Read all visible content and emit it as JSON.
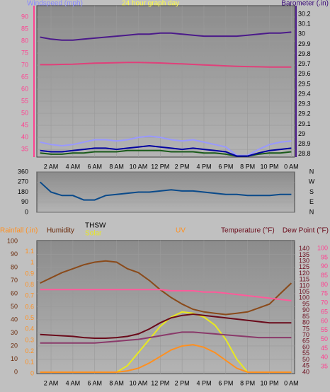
{
  "chart_data": [
    {
      "type": "line",
      "title": "24 hour graph day",
      "y_label": "Windspeed (mph)",
      "y2_label": "Barometer (.in)",
      "xlim": [
        0.7,
        24.3
      ],
      "x": [
        1,
        2,
        3,
        4,
        5,
        6,
        7,
        8,
        9,
        10,
        11,
        12,
        13,
        14,
        15,
        16,
        17,
        18,
        19,
        20,
        21,
        22,
        23,
        24
      ],
      "xticks": [
        {
          "value": 2,
          "label": "2 AM"
        },
        {
          "value": 4,
          "label": "4 AM"
        },
        {
          "value": 6,
          "label": "6 AM"
        },
        {
          "value": 8,
          "label": "8 AM"
        },
        {
          "value": 10,
          "label": "10 AM"
        },
        {
          "value": 12,
          "label": "12 PM"
        },
        {
          "value": 14,
          "label": "2 PM"
        },
        {
          "value": 16,
          "label": "4 PM"
        },
        {
          "value": 18,
          "label": "6 PM"
        },
        {
          "value": 20,
          "label": "8 PM"
        },
        {
          "value": 22,
          "label": "10 PM"
        },
        {
          "value": 24,
          "label": "0 AM"
        }
      ],
      "ylim": [
        31.8,
        94.7
      ],
      "yticks": [
        35,
        40,
        45,
        50,
        55,
        60,
        65,
        70,
        75,
        80,
        85,
        90
      ],
      "y2lim": [
        28.77,
        30.285
      ],
      "y2ticks": [
        28.8,
        28.9,
        29,
        29.1,
        29.2,
        29.3,
        29.4,
        29.5,
        29.6,
        29.7,
        29.8,
        29.9,
        30,
        30.1,
        30.2
      ],
      "grid": true,
      "series": [
        {
          "color": "#9999ff",
          "axis": "y",
          "values": [
            38,
            37,
            36.5,
            37,
            38,
            39,
            39,
            38.5,
            39,
            40,
            40.5,
            40,
            39,
            38.5,
            39,
            38,
            37,
            36,
            32.5,
            32.5,
            35,
            37,
            38,
            38.5
          ]
        },
        {
          "color": "#1a5a1a",
          "axis": "y",
          "values": [
            33.5,
            33,
            33,
            33.5,
            33.5,
            34,
            34,
            34,
            34.5,
            34.5,
            34.5,
            34.5,
            34,
            34,
            34,
            33.5,
            33.5,
            33,
            32.2,
            32.2,
            33,
            33.5,
            33.5,
            34
          ]
        },
        {
          "color": "#0000a0",
          "axis": "y",
          "values": [
            34.5,
            34,
            34,
            34.5,
            35,
            35.5,
            35.5,
            35,
            35.5,
            36,
            36.5,
            36,
            35.5,
            35,
            35.5,
            35,
            34.5,
            34,
            32.2,
            32.2,
            33.5,
            34.5,
            35,
            35.5
          ]
        },
        {
          "color": "#e0407a",
          "axis": "y",
          "values": [
            70.2,
            70.2,
            70.3,
            70.4,
            70.6,
            70.8,
            70.9,
            71,
            71.1,
            71.1,
            71,
            70.9,
            70.7,
            70.5,
            70.3,
            70.1,
            69.9,
            69.7,
            69.5,
            69.4,
            69.3,
            69.2,
            69.2,
            69.2
          ]
        },
        {
          "color": "#4b1a8a",
          "axis": "y2",
          "values": [
            29.97,
            29.95,
            29.94,
            29.94,
            29.95,
            29.96,
            29.97,
            29.98,
            29.99,
            30,
            30,
            30.01,
            30.01,
            30,
            29.99,
            29.98,
            29.98,
            29.98,
            29.98,
            29.99,
            30,
            30.01,
            30.01,
            30.02
          ]
        }
      ]
    },
    {
      "type": "line",
      "ylim": [
        0,
        360
      ],
      "yticks": [
        0,
        90,
        180,
        270,
        360
      ],
      "direction_labels": [
        "N",
        "W",
        "S",
        "E",
        "N"
      ],
      "xlim": [
        0.7,
        24.3
      ],
      "x": [
        1,
        2,
        3,
        4,
        5,
        6,
        7,
        8,
        9,
        10,
        11,
        12,
        13,
        14,
        15,
        16,
        17,
        18,
        19,
        20,
        21,
        22,
        23,
        24
      ],
      "grid": true,
      "series": [
        {
          "color": "#0a4a8a",
          "axis": "y",
          "values": [
            270,
            180,
            150,
            150,
            110,
            110,
            150,
            160,
            170,
            180,
            180,
            190,
            200,
            190,
            190,
            180,
            170,
            160,
            160,
            150,
            150,
            150,
            160,
            160
          ]
        }
      ]
    },
    {
      "type": "line",
      "labels": [
        "Rainfall (.in)",
        "Humidity",
        "THSW",
        "Solar",
        "UV",
        "Temperature (°F)",
        "Dew Point (°F)"
      ],
      "xlim": [
        0.7,
        24.3
      ],
      "x": [
        1,
        2,
        3,
        4,
        5,
        6,
        7,
        8,
        9,
        10,
        11,
        12,
        13,
        14,
        15,
        16,
        17,
        18,
        19,
        20,
        21,
        22,
        23,
        24
      ],
      "xticks": [
        {
          "value": 2,
          "label": "2 AM"
        },
        {
          "value": 4,
          "label": "4 AM"
        },
        {
          "value": 6,
          "label": "6 AM"
        },
        {
          "value": 8,
          "label": "8 AM"
        },
        {
          "value": 10,
          "label": "10 AM"
        },
        {
          "value": 12,
          "label": "12 PM"
        },
        {
          "value": 14,
          "label": "2 PM"
        },
        {
          "value": 16,
          "label": "4 PM"
        },
        {
          "value": 18,
          "label": "6 PM"
        },
        {
          "value": 20,
          "label": "8 PM"
        },
        {
          "value": 22,
          "label": "10 PM"
        },
        {
          "value": 24,
          "label": "0 AM"
        }
      ],
      "ylim": [
        -1.1,
        100.5
      ],
      "yticks": [
        0,
        10,
        20,
        30,
        40,
        50,
        60,
        70,
        80,
        90,
        100
      ],
      "rainlim": [
        0,
        1.2
      ],
      "rainticks": [
        0,
        0.1,
        0.2,
        0.3,
        0.4,
        0.5,
        0.6,
        0.7,
        0.8,
        0.9,
        1,
        1.1
      ],
      "y2lim": [
        38.8,
        146.7
      ],
      "y2ticks": [
        40,
        45,
        50,
        55,
        60,
        65,
        70,
        75,
        80,
        85,
        90,
        95,
        100,
        105,
        110,
        115,
        120,
        125,
        130,
        135,
        140
      ],
      "y3lim": [
        31.2,
        104.3
      ],
      "y3ticks": [
        35,
        40,
        45,
        50,
        55,
        60,
        65,
        70,
        75,
        80,
        85,
        90,
        95,
        100
      ],
      "grid": true,
      "series": [
        {
          "color": "#8a4a1a",
          "axis": "y",
          "values": [
            68,
            72,
            76,
            79,
            82,
            84,
            85,
            84,
            79,
            76,
            70,
            63,
            57,
            52,
            48,
            46,
            45,
            44,
            45,
            46,
            49,
            52,
            60,
            68
          ]
        },
        {
          "color": "#e8e820",
          "axis": "y",
          "values": [
            0,
            0,
            0,
            0,
            0,
            0,
            0,
            0,
            5,
            15,
            25,
            35,
            42,
            46,
            45,
            42,
            36,
            25,
            10,
            0,
            0,
            0,
            0,
            0
          ]
        },
        {
          "color": "#ff9020",
          "axis": "y",
          "values": [
            0,
            0,
            0,
            0,
            0,
            0,
            0,
            0,
            1,
            3,
            7,
            12,
            17,
            20,
            21,
            19,
            15,
            9,
            3,
            0,
            0,
            0,
            0,
            0
          ]
        },
        {
          "color": "#ff5a9a",
          "axis": "y2",
          "values": [
            107,
            107,
            107,
            107,
            107,
            107,
            107,
            107,
            107,
            107,
            107,
            107,
            106,
            106,
            106,
            105,
            105,
            104,
            103,
            102,
            101,
            100,
            99,
            98
          ]
        },
        {
          "color": "#6a0a1a",
          "axis": "y2",
          "values": [
            70.5,
            70,
            69.5,
            69,
            68,
            67.5,
            67.5,
            68,
            69,
            71,
            75,
            80,
            84,
            86,
            87,
            86,
            85,
            84,
            83,
            82,
            81,
            80,
            80,
            80
          ]
        },
        {
          "color": "#8a3a6a",
          "axis": "y3",
          "values": [
            48,
            48,
            48,
            48,
            48,
            48,
            48.5,
            49,
            49.5,
            50,
            51,
            52,
            53,
            54,
            54,
            53.5,
            53,
            52.5,
            52,
            51.5,
            51,
            51,
            51,
            51
          ]
        }
      ]
    }
  ]
}
